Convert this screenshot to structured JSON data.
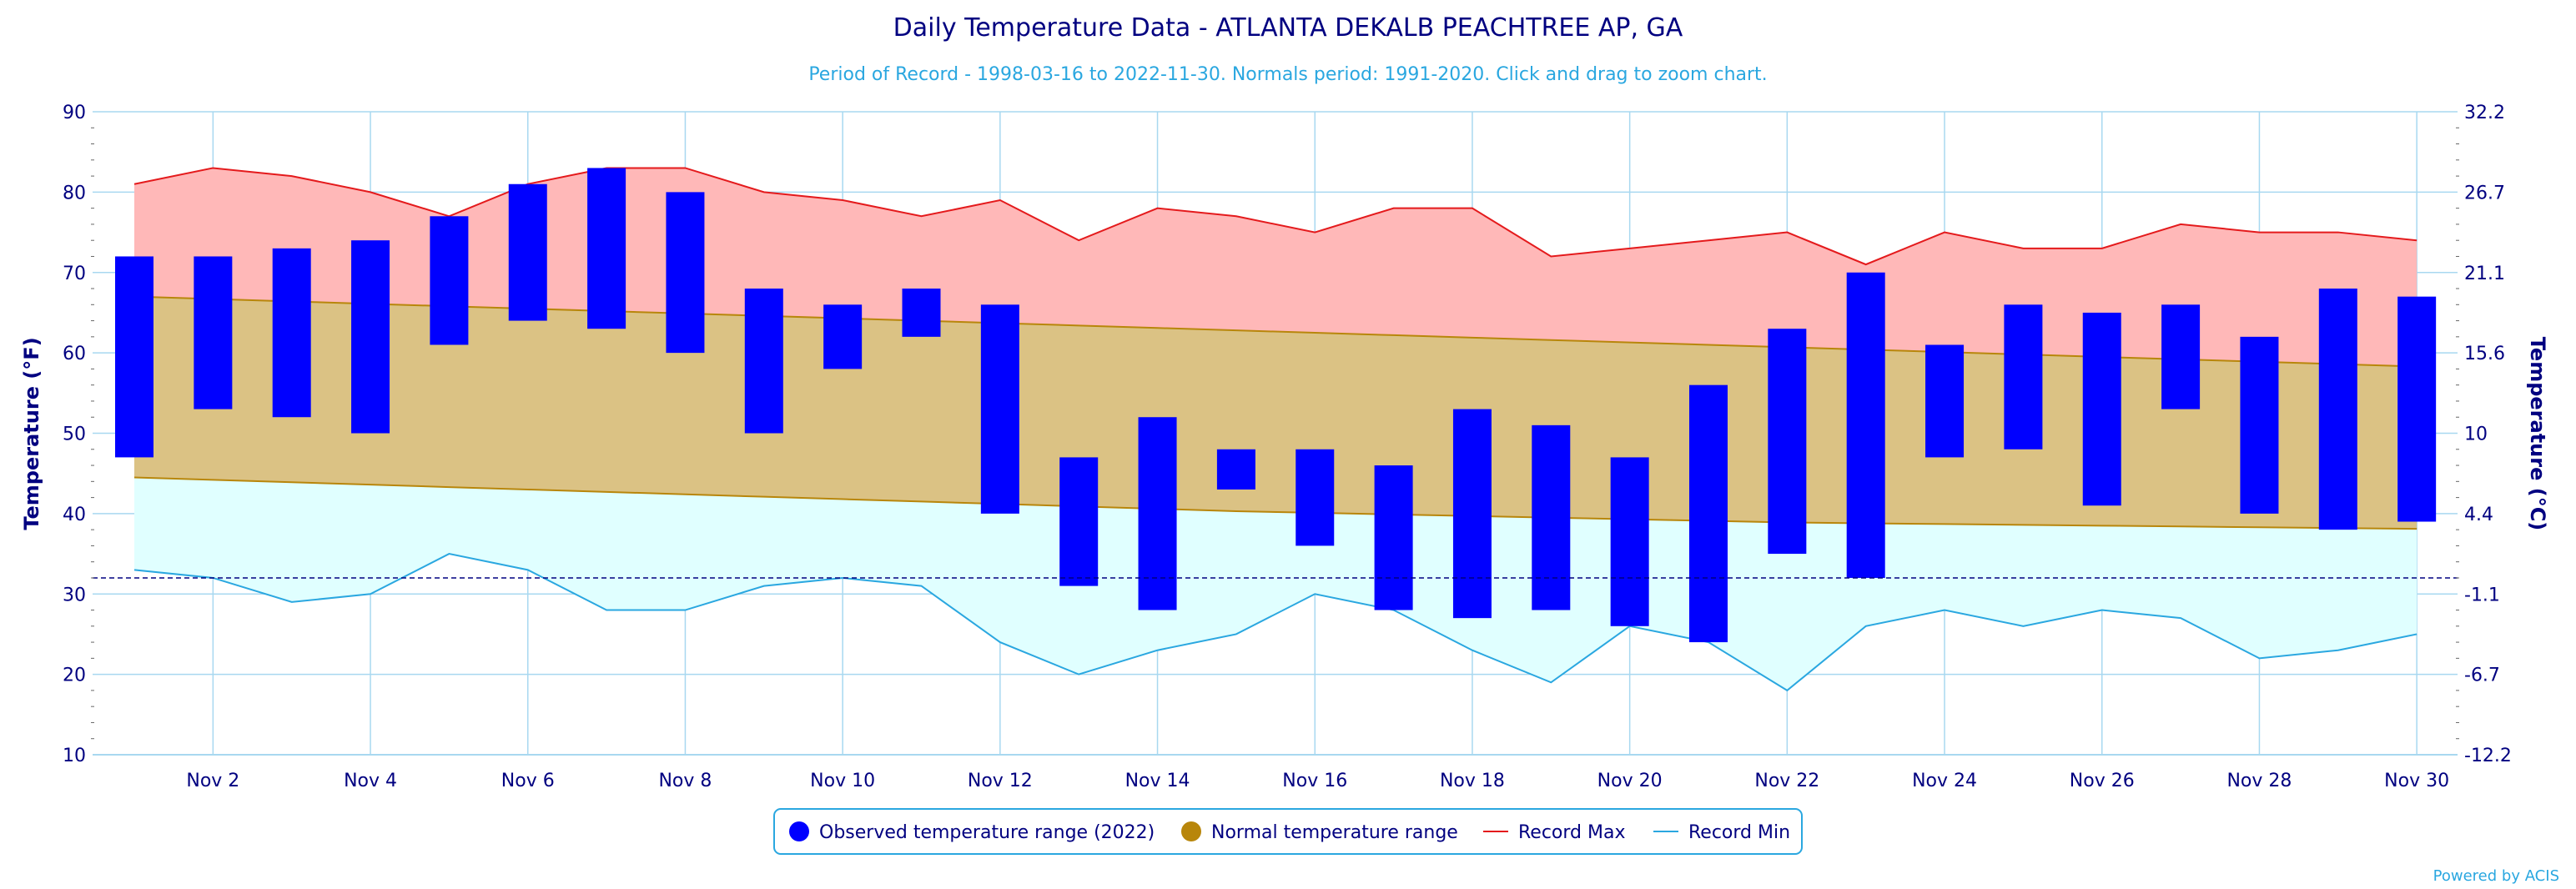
{
  "chart_data": {
    "type": "bar",
    "title": "Daily Temperature Data - ATLANTA DEKALB PEACHTREE AP, GA",
    "subtitle": "Period of Record - 1998-03-16 to 2022-11-30. Normals period: 1991-2020. Click and drag to zoom chart.",
    "ylabel_left": "Temperature (°F)",
    "ylabel_right": "Temperature (°C)",
    "ylim": [
      10,
      90
    ],
    "yticks_left": [
      "10",
      "20",
      "30",
      "40",
      "50",
      "60",
      "70",
      "80",
      "90"
    ],
    "yticks_right": [
      "-12.2",
      "-6.7",
      "-1.1",
      "4.4",
      "10",
      "15.6",
      "21.1",
      "26.7",
      "32.2"
    ],
    "x_tick_labels": [
      "Nov 2",
      "Nov 4",
      "Nov 6",
      "Nov 8",
      "Nov 10",
      "Nov 12",
      "Nov 14",
      "Nov 16",
      "Nov 18",
      "Nov 20",
      "Nov 22",
      "Nov 24",
      "Nov 26",
      "Nov 28",
      "Nov 30"
    ],
    "x_tick_days": [
      2,
      4,
      6,
      8,
      10,
      12,
      14,
      16,
      18,
      20,
      22,
      24,
      26,
      28,
      30
    ],
    "days": [
      1,
      2,
      3,
      4,
      5,
      6,
      7,
      8,
      9,
      10,
      11,
      12,
      13,
      14,
      15,
      16,
      17,
      18,
      19,
      20,
      21,
      22,
      23,
      24,
      25,
      26,
      27,
      28,
      29,
      30
    ],
    "freezing_line": 32,
    "series": [
      {
        "name": "Observed temperature range (2022)",
        "color": "#0000ff",
        "high": [
          72,
          72,
          73,
          74,
          77,
          81,
          83,
          80,
          68,
          66,
          68,
          66,
          47,
          52,
          48,
          48,
          46,
          53,
          51,
          47,
          56,
          63,
          70,
          61,
          66,
          65,
          66,
          62,
          68,
          67
        ],
        "low": [
          47,
          53,
          52,
          50,
          61,
          64,
          63,
          60,
          50,
          58,
          62,
          40,
          31,
          28,
          43,
          36,
          28,
          27,
          28,
          26,
          24,
          35,
          32,
          47,
          48,
          41,
          53,
          40,
          38,
          39
        ]
      },
      {
        "name": "Normal temperature range",
        "color": "#b8860b",
        "fill": "#dbc284",
        "high": [
          67.0,
          66.7,
          66.4,
          66.1,
          65.8,
          65.5,
          65.2,
          64.9,
          64.6,
          64.3,
          64.0,
          63.7,
          63.4,
          63.1,
          62.8,
          62.5,
          62.2,
          61.9,
          61.6,
          61.3,
          61.0,
          60.7,
          60.4,
          60.1,
          59.8,
          59.5,
          59.2,
          58.9,
          58.6,
          58.3
        ],
        "low": [
          44.5,
          44.2,
          43.9,
          43.6,
          43.3,
          43.0,
          42.7,
          42.4,
          42.1,
          41.8,
          41.5,
          41.2,
          40.9,
          40.6,
          40.3,
          40.1,
          39.9,
          39.7,
          39.5,
          39.3,
          39.1,
          38.9,
          38.8,
          38.7,
          38.6,
          38.5,
          38.4,
          38.3,
          38.2,
          38.1
        ]
      },
      {
        "name": "Record Max",
        "color": "#e41a1c",
        "fill": "#ffb8b8",
        "values": [
          81,
          83,
          82,
          80,
          77,
          81,
          83,
          83,
          80,
          79,
          77,
          79,
          74,
          78,
          77,
          75,
          78,
          78,
          72,
          73,
          74,
          75,
          71,
          75,
          73,
          73,
          76,
          75,
          75,
          74
        ]
      },
      {
        "name": "Record Min",
        "color": "#2aa7e0",
        "fill": "#e0ffff",
        "values": [
          33,
          32,
          29,
          30,
          35,
          33,
          28,
          28,
          31,
          32,
          31,
          24,
          20,
          23,
          25,
          30,
          28,
          23,
          19,
          26,
          24,
          18,
          26,
          28,
          26,
          28,
          27,
          22,
          23,
          25
        ]
      }
    ],
    "legend_position": "bottom-center",
    "grid": true
  },
  "footer": {
    "credit": "Powered by ACIS"
  }
}
